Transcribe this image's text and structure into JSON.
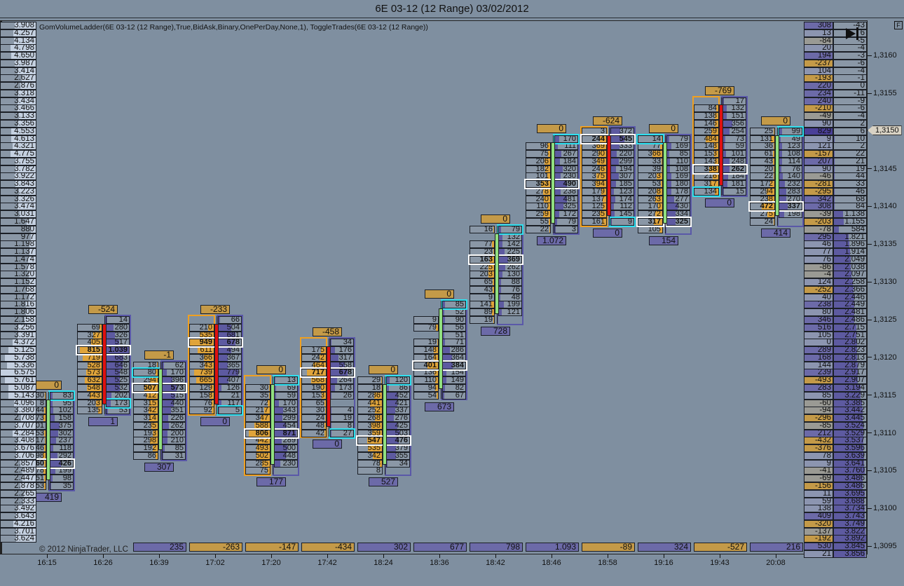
{
  "window": {
    "title": "6E 03-12 (12 Range)  03/02/2012"
  },
  "indicator_label": "GomVolumeLadder(6E 03-12 (12 Range),True,BidAsk,Binary,OnePerDay,None,1), ToggleTrades(6E 03-12 (12 Range))",
  "copyright": "© 2012 NinjaTrader, LLC",
  "f_button": "F",
  "last_price": "1,3150",
  "colors": {
    "bg": "#7f8fa0",
    "bid": "#e0a43a",
    "ask": "#5d5aa0",
    "up": "#90e080",
    "down": "#e01010",
    "poc": "#ffffff",
    "highlight": "#2fe0f0"
  },
  "price_top": 1.3164,
  "tick": 0.0001,
  "price_labels": [
    {
      "price": 1.316,
      "text": "1,3160"
    },
    {
      "price": 1.3155,
      "text": "1,3155"
    },
    {
      "price": 1.3145,
      "text": "1,3145"
    },
    {
      "price": 1.314,
      "text": "1,3140"
    },
    {
      "price": 1.3135,
      "text": "1,3135"
    },
    {
      "price": 1.313,
      "text": "1,3130"
    },
    {
      "price": 1.3125,
      "text": "1,3125"
    },
    {
      "price": 1.312,
      "text": "1,3120"
    },
    {
      "price": 1.3115,
      "text": "1,3115"
    },
    {
      "price": 1.311,
      "text": "1,3110"
    },
    {
      "price": 1.3105,
      "text": "1,3105"
    },
    {
      "price": 1.31,
      "text": "1,3100"
    },
    {
      "price": 1.3095,
      "text": "1,3095"
    }
  ],
  "left_profile": [
    "3.908",
    "4.257",
    "4.134",
    "4.798",
    "4.650",
    "3.987",
    "3.414",
    "2.627",
    "2.876",
    "3.318",
    "3.434",
    "3.466",
    "3.133",
    "3.356",
    "4.553",
    "4.613",
    "4.321",
    "4.775",
    "3.755",
    "3.782",
    "3.922",
    "3.843",
    "3.223",
    "3.326",
    "3.474",
    "3.031",
    "1.647",
    "880",
    "977",
    "1.198",
    "1.137",
    "1.474",
    "1.578",
    "1.320",
    "1.152",
    "1.768",
    "1.172",
    "1.816",
    "1.806",
    "2.158",
    "3.256",
    "3.391",
    "4.372",
    "5.125",
    "5.738",
    "5.336",
    "6.575",
    "5.761",
    "5.087",
    "5.143",
    "4.096",
    "3.380",
    "2.708",
    "3.707",
    "4.284",
    "3.408",
    "3.676",
    "3.706",
    "2.857",
    "2.489",
    "2.447",
    "2.878",
    "2.265",
    "2.333",
    "3.492",
    "3.643",
    "4.216",
    "3.701",
    "3.624"
  ],
  "right_ladder": [
    [
      "308",
      "-43"
    ],
    [
      "13",
      "6"
    ],
    [
      "-84",
      "-5"
    ],
    [
      "20",
      "-4"
    ],
    [
      "194",
      "-3"
    ],
    [
      "-237",
      "-6"
    ],
    [
      "104",
      "-4"
    ],
    [
      "-193",
      "-1"
    ],
    [
      "220",
      "0"
    ],
    [
      "234",
      "-11"
    ],
    [
      "240",
      "-9"
    ],
    [
      "-210",
      "-6"
    ],
    [
      "-49",
      "-4"
    ],
    [
      "90",
      "2"
    ],
    [
      "829",
      "6"
    ],
    [
      "9",
      "10"
    ],
    [
      "121",
      "2"
    ],
    [
      "-157",
      "22"
    ],
    [
      "207",
      "21"
    ],
    [
      "90",
      "19"
    ],
    [
      "-46",
      "44"
    ],
    [
      "-281",
      "33"
    ],
    [
      "-295",
      "46"
    ],
    [
      "342",
      "68"
    ],
    [
      "308",
      "84"
    ],
    [
      "-39",
      "1.138"
    ],
    [
      "-203",
      "1.155"
    ],
    [
      "-78",
      "584"
    ],
    [
      "295",
      "1.821"
    ],
    [
      "46",
      "1.896"
    ],
    [
      "77",
      "1.914"
    ],
    [
      "76",
      "2.049"
    ],
    [
      "-86",
      "2.038"
    ],
    [
      "-4",
      "2.097"
    ],
    [
      "124",
      "2.258"
    ],
    [
      "-252",
      "2.366"
    ],
    [
      "40",
      "2.446"
    ],
    [
      "238",
      "2.449"
    ],
    [
      "80",
      "2.481"
    ],
    [
      "346",
      "2.486"
    ],
    [
      "516",
      "2.715"
    ],
    [
      "105",
      "2.751"
    ],
    [
      "0",
      "2.802"
    ],
    [
      "289",
      "2.823"
    ],
    [
      "168",
      "2.813"
    ],
    [
      "144",
      "2.879"
    ],
    [
      "239",
      "2.917"
    ],
    [
      "-493",
      "2.907"
    ],
    [
      "283",
      "3.194"
    ],
    [
      "85",
      "3.229"
    ],
    [
      "-60",
      "3.385"
    ],
    [
      "-94",
      "3.442"
    ],
    [
      "-296",
      "3.445"
    ],
    [
      "-85",
      "3.524"
    ],
    [
      "212",
      "3.529"
    ],
    [
      "-432",
      "3.537"
    ],
    [
      "-376",
      "3.596"
    ],
    [
      "78",
      "3.639"
    ],
    [
      "9",
      "3.641"
    ],
    [
      "-41",
      "3.760"
    ],
    [
      "-69",
      "3.486"
    ],
    [
      "-156",
      "3.486"
    ],
    [
      "11",
      "3.695"
    ],
    [
      "59",
      "3.688"
    ],
    [
      "138",
      "3.734"
    ],
    [
      "409",
      "3.743"
    ],
    [
      "-320",
      "3.749"
    ],
    [
      "-137",
      "3.822"
    ],
    [
      "-192",
      "3.892"
    ],
    [
      "530",
      "3.845"
    ],
    [
      "21",
      "3.856"
    ]
  ],
  "bars": [
    {
      "time": "16:15",
      "top_price": 1.3115,
      "delta": "0",
      "volume": "419",
      "strip": null,
      "dir": "up",
      "poc": 9,
      "hl": [
        0,
        "ask"
      ],
      "outlined": false,
      "rows": [
        [
          "30",
          "83"
        ],
        [
          "8",
          "95"
        ],
        [
          "44",
          "102"
        ],
        [
          "73",
          "158"
        ],
        [
          "01",
          "375"
        ],
        [
          "53",
          "302"
        ],
        [
          "17",
          "237"
        ],
        [
          "46",
          "118"
        ],
        [
          "98",
          "292"
        ],
        [
          "60",
          "426"
        ],
        [
          "78",
          "199"
        ],
        [
          "51",
          "98"
        ],
        [
          "53",
          "35"
        ]
      ]
    },
    {
      "time": "16:26",
      "top_price": 1.3125,
      "delta": "-524",
      "volume": "1",
      "strip": null,
      "dir": "down",
      "poc": 4,
      "hl": [
        11,
        "ask"
      ],
      "outlined": false,
      "rows": [
        [
          "",
          "14"
        ],
        [
          "69",
          "280"
        ],
        [
          "327",
          "326"
        ],
        [
          "405",
          "517"
        ],
        [
          "815",
          "1.039"
        ],
        [
          "719",
          "683"
        ],
        [
          "528",
          "646"
        ],
        [
          "573",
          "548"
        ],
        [
          "632",
          "525"
        ],
        [
          "548",
          "532"
        ],
        [
          "443",
          "202"
        ],
        [
          "203",
          "173"
        ],
        [
          "135",
          "53"
        ]
      ]
    },
    {
      "time": "16:39",
      "top_price": 1.3119,
      "delta": "-1",
      "volume": "307",
      "strip": "235",
      "dir": "up",
      "poc": 3,
      "hl": [
        1,
        "bid"
      ],
      "outlined": false,
      "rows": [
        [
          "18",
          "62"
        ],
        [
          "80",
          "170"
        ],
        [
          "294",
          "396"
        ],
        [
          "507",
          "573"
        ],
        [
          "412",
          "515"
        ],
        [
          "315",
          "440"
        ],
        [
          "342",
          "351"
        ],
        [
          "314",
          "226"
        ],
        [
          "235",
          "262"
        ],
        [
          "193",
          "200"
        ],
        [
          "298",
          "210"
        ],
        [
          "192",
          "85"
        ],
        [
          "86",
          "31"
        ]
      ]
    },
    {
      "time": "17:02",
      "top_price": 1.3125,
      "delta": "-233",
      "volume": "0",
      "strip": "-263",
      "dir": "down",
      "poc": 3,
      "hl": [
        12,
        "ask"
      ],
      "outlined": true,
      "rows": [
        [
          "",
          "66"
        ],
        [
          "210",
          "504"
        ],
        [
          "535",
          "681"
        ],
        [
          "949",
          "678"
        ],
        [
          "611",
          "494"
        ],
        [
          "366",
          "367"
        ],
        [
          "343",
          "365"
        ],
        [
          "739",
          "779"
        ],
        [
          "665",
          "407"
        ],
        [
          "129",
          "126"
        ],
        [
          "158",
          "21"
        ],
        [
          "76",
          "117"
        ],
        [
          "92",
          "5"
        ]
      ]
    },
    {
      "time": "17:20",
      "top_price": 1.3117,
      "delta": "0",
      "volume": "177",
      "strip": "-147",
      "dir": "up",
      "poc": 7,
      "hl": [
        0,
        "ask"
      ],
      "outlined": true,
      "rows": [
        [
          "",
          "13"
        ],
        [
          "30",
          "69"
        ],
        [
          "35",
          "59"
        ],
        [
          "72",
          "170"
        ],
        [
          "217",
          "343"
        ],
        [
          "347",
          "299"
        ],
        [
          "588",
          "454"
        ],
        [
          "806",
          "871"
        ],
        [
          "442",
          "289"
        ],
        [
          "493",
          "500"
        ],
        [
          "502",
          "448"
        ],
        [
          "285",
          "230"
        ],
        [
          "75",
          ""
        ]
      ]
    },
    {
      "time": "17:42",
      "top_price": 1.3122,
      "delta": "-458",
      "volume": "0",
      "strip": "-434",
      "dir": "down",
      "poc": 4,
      "hl": [
        12,
        "ask"
      ],
      "outlined": true,
      "rows": [
        [
          "",
          "34"
        ],
        [
          "175",
          "176"
        ],
        [
          "242",
          "317"
        ],
        [
          "464",
          "558"
        ],
        [
          "717",
          "678"
        ],
        [
          "568",
          "264"
        ],
        [
          "190",
          "173"
        ],
        [
          "153",
          "26"
        ],
        [
          "65",
          ""
        ],
        [
          "30",
          "4"
        ],
        [
          "24",
          "19"
        ],
        [
          "48",
          "8"
        ],
        [
          "42",
          "27"
        ]
      ]
    },
    {
      "time": "18:24",
      "top_price": 1.3117,
      "delta": "0",
      "volume": "527",
      "strip": "302",
      "dir": "up",
      "poc": 8,
      "hl": [
        0,
        "ask"
      ],
      "outlined": false,
      "rows": [
        [
          "29",
          "120"
        ],
        [
          "18",
          "86"
        ],
        [
          "286",
          "452"
        ],
        [
          "441",
          "421"
        ],
        [
          "252",
          "337"
        ],
        [
          "268",
          "276"
        ],
        [
          "398",
          "425"
        ],
        [
          "359",
          "503"
        ],
        [
          "547",
          "476"
        ],
        [
          "535",
          "379"
        ],
        [
          "342",
          "355"
        ],
        [
          "78",
          "34"
        ],
        [
          "8",
          ""
        ]
      ]
    },
    {
      "time": "18:36",
      "top_price": 1.3127,
      "delta": "0",
      "volume": "673",
      "strip": "677",
      "dir": "up",
      "poc": 8,
      "hl": [
        0,
        "ask"
      ],
      "outlined": false,
      "rows": [
        [
          "",
          "85"
        ],
        [
          "",
          "52"
        ],
        [
          "9",
          "90"
        ],
        [
          "79",
          "56"
        ],
        [
          "",
          "51"
        ],
        [
          "19",
          "71"
        ],
        [
          "148",
          "286"
        ],
        [
          "164",
          "364"
        ],
        [
          "401",
          "384"
        ],
        [
          "136",
          "154"
        ],
        [
          "110",
          "149"
        ],
        [
          "94",
          "82"
        ],
        [
          "54",
          "67"
        ]
      ]
    },
    {
      "time": "18:42",
      "top_price": 1.3137,
      "delta": "0",
      "volume": "728",
      "strip": "798",
      "dir": "up",
      "poc": 4,
      "hl": [
        0,
        "ask"
      ],
      "outlined": false,
      "rows": [
        [
          "16",
          "79"
        ],
        [
          "",
          "132"
        ],
        [
          "77",
          "142"
        ],
        [
          "23",
          "225"
        ],
        [
          "163",
          "369"
        ],
        [
          "225",
          "262"
        ],
        [
          "203",
          "130"
        ],
        [
          "65",
          "88"
        ],
        [
          "43",
          "76"
        ],
        [
          "9",
          "48"
        ],
        [
          "141",
          "199"
        ],
        [
          "89",
          "121"
        ],
        [
          "19",
          ""
        ]
      ]
    },
    {
      "time": "18:46",
      "top_price": 1.3149,
      "delta": "0",
      "volume": "1.072",
      "strip": "1.093",
      "dir": "up",
      "poc": 6,
      "hl": [
        0,
        "ask"
      ],
      "outlined": false,
      "rows": [
        [
          "",
          "170"
        ],
        [
          "96",
          "111"
        ],
        [
          "75",
          "267"
        ],
        [
          "206",
          "184"
        ],
        [
          "182",
          "320"
        ],
        [
          "101",
          "230"
        ],
        [
          "353",
          "490"
        ],
        [
          "278",
          "238"
        ],
        [
          "240",
          "481"
        ],
        [
          "110",
          "325"
        ],
        [
          "259",
          "172"
        ],
        [
          "55",
          "79"
        ],
        [
          "22",
          "3"
        ]
      ]
    },
    {
      "time": "18:58",
      "top_price": 1.315,
      "delta": "-624",
      "volume": "0",
      "strip": "-89",
      "dir": "down",
      "poc": 1,
      "hl": [
        12,
        "ask"
      ],
      "outlined": true,
      "rows": [
        [
          "3",
          "372"
        ],
        [
          "244",
          "545"
        ],
        [
          "369",
          "333"
        ],
        [
          "290",
          "220"
        ],
        [
          "349",
          "299"
        ],
        [
          "246",
          "194"
        ],
        [
          "375",
          "307"
        ],
        [
          "394",
          "185"
        ],
        [
          "179",
          "123"
        ],
        [
          "137",
          "174"
        ],
        [
          "125",
          "112"
        ],
        [
          "235",
          "145"
        ],
        [
          "161",
          "9"
        ]
      ]
    },
    {
      "time": "19:16",
      "top_price": 1.3149,
      "delta": "0",
      "volume": "154",
      "strip": "324",
      "dir": "up",
      "poc": 11,
      "hl": [
        0,
        "bid"
      ],
      "outlined": false,
      "rows": [
        [
          "14",
          "79"
        ],
        [
          "77",
          "169"
        ],
        [
          "366",
          "85"
        ],
        [
          "33",
          "110"
        ],
        [
          "39",
          "108"
        ],
        [
          "203",
          "169"
        ],
        [
          "53",
          "180"
        ],
        [
          "208",
          "178"
        ],
        [
          "263",
          "277"
        ],
        [
          "170",
          "430"
        ],
        [
          "272",
          "334"
        ],
        [
          "317",
          "325"
        ],
        [
          "105",
          ""
        ]
      ]
    },
    {
      "time": "19:43",
      "top_price": 1.3154,
      "delta": "-769",
      "volume": "0",
      "strip": "-527",
      "dir": "down",
      "poc": 9,
      "hl": [
        12,
        "bid"
      ],
      "outlined": true,
      "rows": [
        [
          "",
          "17"
        ],
        [
          "84",
          "132"
        ],
        [
          "138",
          "151"
        ],
        [
          "146",
          "356"
        ],
        [
          "259",
          "254"
        ],
        [
          "484",
          "73"
        ],
        [
          "148",
          "59"
        ],
        [
          "153",
          "101"
        ],
        [
          "143",
          "248"
        ],
        [
          "338",
          "262"
        ],
        [
          "216",
          "184"
        ],
        [
          "317",
          "181"
        ],
        [
          "134",
          "15"
        ]
      ]
    },
    {
      "time": "20:08",
      "top_price": 1.315,
      "delta": "0",
      "volume": "414",
      "strip": "216",
      "dir": "up",
      "poc": 10,
      "hl": [
        0,
        "ask"
      ],
      "outlined": false,
      "rows": [
        [
          "25",
          "99"
        ],
        [
          "131",
          "49"
        ],
        [
          "36",
          "123"
        ],
        [
          "61",
          "108"
        ],
        [
          "43",
          "114"
        ],
        [
          "20",
          "76"
        ],
        [
          "22",
          "140"
        ],
        [
          "172",
          "232"
        ],
        [
          "294",
          "283"
        ],
        [
          "238",
          "270"
        ],
        [
          "472",
          "337"
        ],
        [
          "275",
          "198"
        ],
        [
          "24",
          ""
        ]
      ]
    }
  ]
}
